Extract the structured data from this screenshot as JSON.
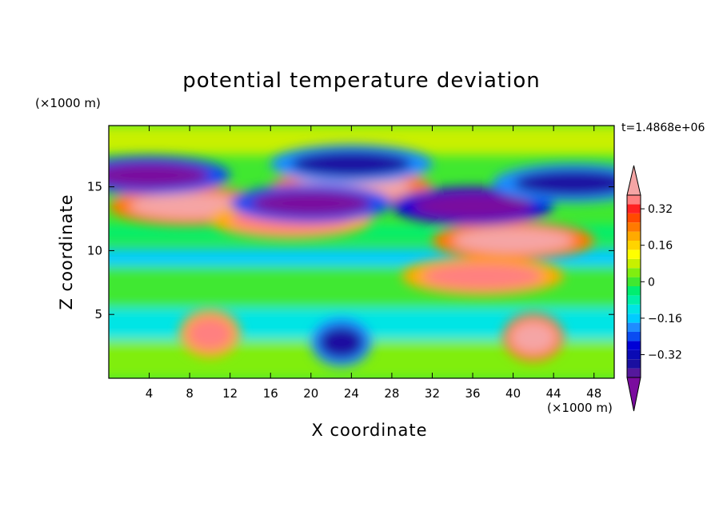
{
  "chart_data": {
    "type": "heatmap",
    "title": "potential temperature deviation",
    "xlabel": "X coordinate",
    "ylabel": "Z coordinate",
    "x_unit": "(×1000 m)",
    "y_unit": "(×1000 m)",
    "annotation": "t=1.4868e+06",
    "xlim": [
      0,
      50
    ],
    "ylim": [
      0,
      19.8
    ],
    "x_ticks": [
      4,
      8,
      12,
      16,
      20,
      24,
      28,
      32,
      36,
      40,
      44,
      48
    ],
    "y_ticks": [
      5,
      10,
      15
    ],
    "colorbar": {
      "levels": [
        -0.44,
        -0.4,
        -0.36,
        -0.32,
        -0.28,
        -0.24,
        -0.2,
        -0.16,
        -0.12,
        -0.08,
        -0.04,
        0,
        0.04,
        0.08,
        0.12,
        0.16,
        0.2,
        0.24,
        0.28,
        0.32,
        0.36,
        0.4
      ],
      "labeled_ticks": [
        "0.32",
        "0.16",
        "0",
        "−0.16",
        "−0.32"
      ],
      "labeled_values": [
        0.32,
        0.16,
        0,
        -0.16,
        -0.32
      ],
      "extend": "both",
      "colors": [
        "#7a0c9e",
        "#55189c",
        "#1a0fa0",
        "#0a0ab4",
        "#0000d6",
        "#0a4cf2",
        "#1f8cff",
        "#00ccff",
        "#00e5e5",
        "#00f0a8",
        "#00ee70",
        "#40e830",
        "#80ee10",
        "#c8f000",
        "#ffff00",
        "#ffd400",
        "#ffaa00",
        "#ff7a00",
        "#ff4a00",
        "#ff2222",
        "#ff8080",
        "#f5a5a5"
      ]
    },
    "features": [
      {
        "x": 8,
        "z": 13.5,
        "value": 0.45
      },
      {
        "x": 18,
        "z": 12.4,
        "value": 0.4
      },
      {
        "x": 24,
        "z": 14.9,
        "value": 0.45
      },
      {
        "x": 40,
        "z": 10.8,
        "value": 0.45
      },
      {
        "x": 37,
        "z": 8.0,
        "value": 0.4
      },
      {
        "x": 4,
        "z": 15.9,
        "value": -0.4
      },
      {
        "x": 20,
        "z": 13.7,
        "value": -0.4
      },
      {
        "x": 36,
        "z": 13.5,
        "value": -0.5
      },
      {
        "x": 24,
        "z": 16.8,
        "value": -0.35
      },
      {
        "x": 46,
        "z": 15.3,
        "value": -0.35
      },
      {
        "x": 23,
        "z": 2.8,
        "value": -0.35
      },
      {
        "x": 10,
        "z": 3.5,
        "value": 0.4
      },
      {
        "x": 42,
        "z": 3.2,
        "value": 0.45
      }
    ]
  },
  "colors": {
    "background": "#ffffff",
    "axes": "#000000"
  }
}
